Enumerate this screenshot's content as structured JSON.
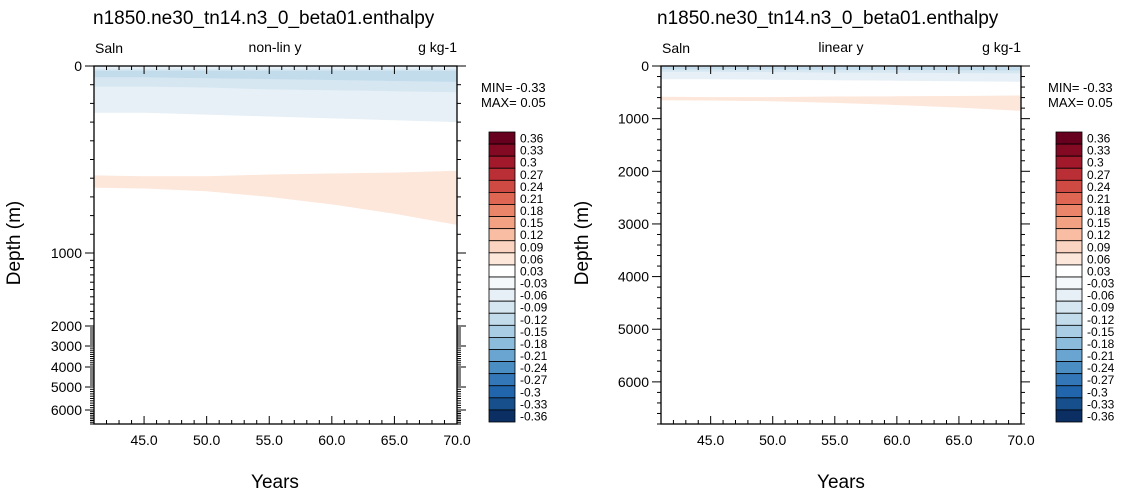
{
  "colors": {
    "contour_levels": [
      -0.36,
      -0.33,
      -0.3,
      -0.27,
      -0.24,
      -0.21,
      -0.18,
      -0.15,
      -0.12,
      -0.09,
      -0.06,
      -0.03,
      0.03,
      0.06,
      0.09,
      0.12,
      0.15,
      0.18,
      0.21,
      0.24,
      0.27,
      0.3,
      0.33,
      0.36
    ],
    "palette": [
      "#0b2e63",
      "#164f8b",
      "#2166ac",
      "#3377b8",
      "#4a8ec4",
      "#69a5d0",
      "#8bbcdc",
      "#a8cde5",
      "#c2dcec",
      "#d6e7f2",
      "#e7f0f7",
      "#f4f8fb",
      "#ffffff",
      "#fde6da",
      "#fbd3c1",
      "#f8bda2",
      "#f2a283",
      "#ea8569",
      "#de6653",
      "#ce4a42",
      "#b92f35",
      "#a2192c",
      "#840a24",
      "#67001f"
    ]
  },
  "chart_data": [
    {
      "type": "heatmap",
      "title": "n1850.ne30_tn14.n3_0_beta01.enthalpy",
      "left_label": "Saln",
      "center_label": "non-lin y",
      "right_label": "g kg-1",
      "xlabel": "Years",
      "ylabel": "Depth (m)",
      "xlim": [
        41,
        70
      ],
      "ylim": [
        6800,
        0
      ],
      "yscale": "nonlinear",
      "x_ticks": [
        "45.0",
        "50.0",
        "55.0",
        "60.0",
        "65.0",
        "70.0"
      ],
      "y_ticks": [
        "0",
        "1000",
        "2000",
        "3000",
        "4000",
        "5000",
        "6000"
      ],
      "min_label": "MIN= -0.33",
      "max_label": "MAX=  0.05",
      "colorbar_labels": [
        "0.36",
        "0.33",
        "0.3",
        "0.27",
        "0.24",
        "0.21",
        "0.18",
        "0.15",
        "0.12",
        "0.09",
        "0.06",
        "0.03",
        "-0.03",
        "-0.06",
        "-0.09",
        "-0.12",
        "-0.15",
        "-0.18",
        "-0.21",
        "-0.24",
        "-0.27",
        "-0.3",
        "-0.33",
        "-0.36"
      ],
      "bands": [
        {
          "value": -0.06,
          "x": [
            41,
            45,
            50,
            55,
            60,
            65,
            70
          ],
          "top": [
            0,
            0,
            0,
            0,
            0,
            0,
            0
          ],
          "bottom": [
            250,
            250,
            260,
            270,
            280,
            290,
            300
          ]
        },
        {
          "value": -0.09,
          "x": [
            41,
            45,
            50,
            55,
            60,
            65,
            70
          ],
          "top": [
            15,
            15,
            15,
            15,
            15,
            15,
            15
          ],
          "bottom": [
            110,
            110,
            115,
            125,
            130,
            135,
            140
          ]
        },
        {
          "value": -0.12,
          "x": [
            41,
            45,
            50,
            55,
            60,
            65,
            70
          ],
          "top": [
            25,
            25,
            25,
            25,
            25,
            25,
            25
          ],
          "bottom": [
            60,
            60,
            65,
            70,
            75,
            80,
            85
          ]
        },
        {
          "value": 0.06,
          "x": [
            41,
            45,
            50,
            55,
            60,
            65,
            70
          ],
          "top": [
            585,
            590,
            590,
            580,
            575,
            570,
            560
          ],
          "bottom": [
            650,
            655,
            670,
            700,
            740,
            790,
            850
          ]
        }
      ]
    },
    {
      "type": "heatmap",
      "title": "n1850.ne30_tn14.n3_0_beta01.enthalpy",
      "left_label": "Saln",
      "center_label": "linear y",
      "right_label": "g kg-1",
      "xlabel": "Years",
      "ylabel": "Depth (m)",
      "xlim": [
        41,
        70
      ],
      "ylim": [
        6800,
        0
      ],
      "yscale": "linear",
      "x_ticks": [
        "45.0",
        "50.0",
        "55.0",
        "60.0",
        "65.0",
        "70.0"
      ],
      "y_ticks": [
        "0",
        "1000",
        "2000",
        "3000",
        "4000",
        "5000",
        "6000"
      ],
      "min_label": "MIN= -0.33",
      "max_label": "MAX=  0.05",
      "colorbar_labels": [
        "0.36",
        "0.33",
        "0.3",
        "0.27",
        "0.24",
        "0.21",
        "0.18",
        "0.15",
        "0.12",
        "0.09",
        "0.06",
        "0.03",
        "-0.03",
        "-0.06",
        "-0.09",
        "-0.12",
        "-0.15",
        "-0.18",
        "-0.21",
        "-0.24",
        "-0.27",
        "-0.3",
        "-0.33",
        "-0.36"
      ],
      "bands": [
        {
          "value": -0.06,
          "x": [
            41,
            45,
            50,
            55,
            60,
            65,
            70
          ],
          "top": [
            0,
            0,
            0,
            0,
            0,
            0,
            0
          ],
          "bottom": [
            250,
            250,
            260,
            270,
            280,
            290,
            300
          ]
        },
        {
          "value": -0.09,
          "x": [
            41,
            45,
            50,
            55,
            60,
            65,
            70
          ],
          "top": [
            15,
            15,
            15,
            15,
            15,
            15,
            15
          ],
          "bottom": [
            110,
            110,
            115,
            125,
            130,
            135,
            140
          ]
        },
        {
          "value": -0.12,
          "x": [
            41,
            45,
            50,
            55,
            60,
            65,
            70
          ],
          "top": [
            25,
            25,
            25,
            25,
            25,
            25,
            25
          ],
          "bottom": [
            60,
            60,
            65,
            70,
            75,
            80,
            85
          ]
        },
        {
          "value": 0.06,
          "x": [
            41,
            45,
            50,
            55,
            60,
            65,
            70
          ],
          "top": [
            585,
            590,
            590,
            580,
            575,
            570,
            560
          ],
          "bottom": [
            650,
            655,
            670,
            700,
            740,
            790,
            850
          ]
        }
      ]
    }
  ]
}
